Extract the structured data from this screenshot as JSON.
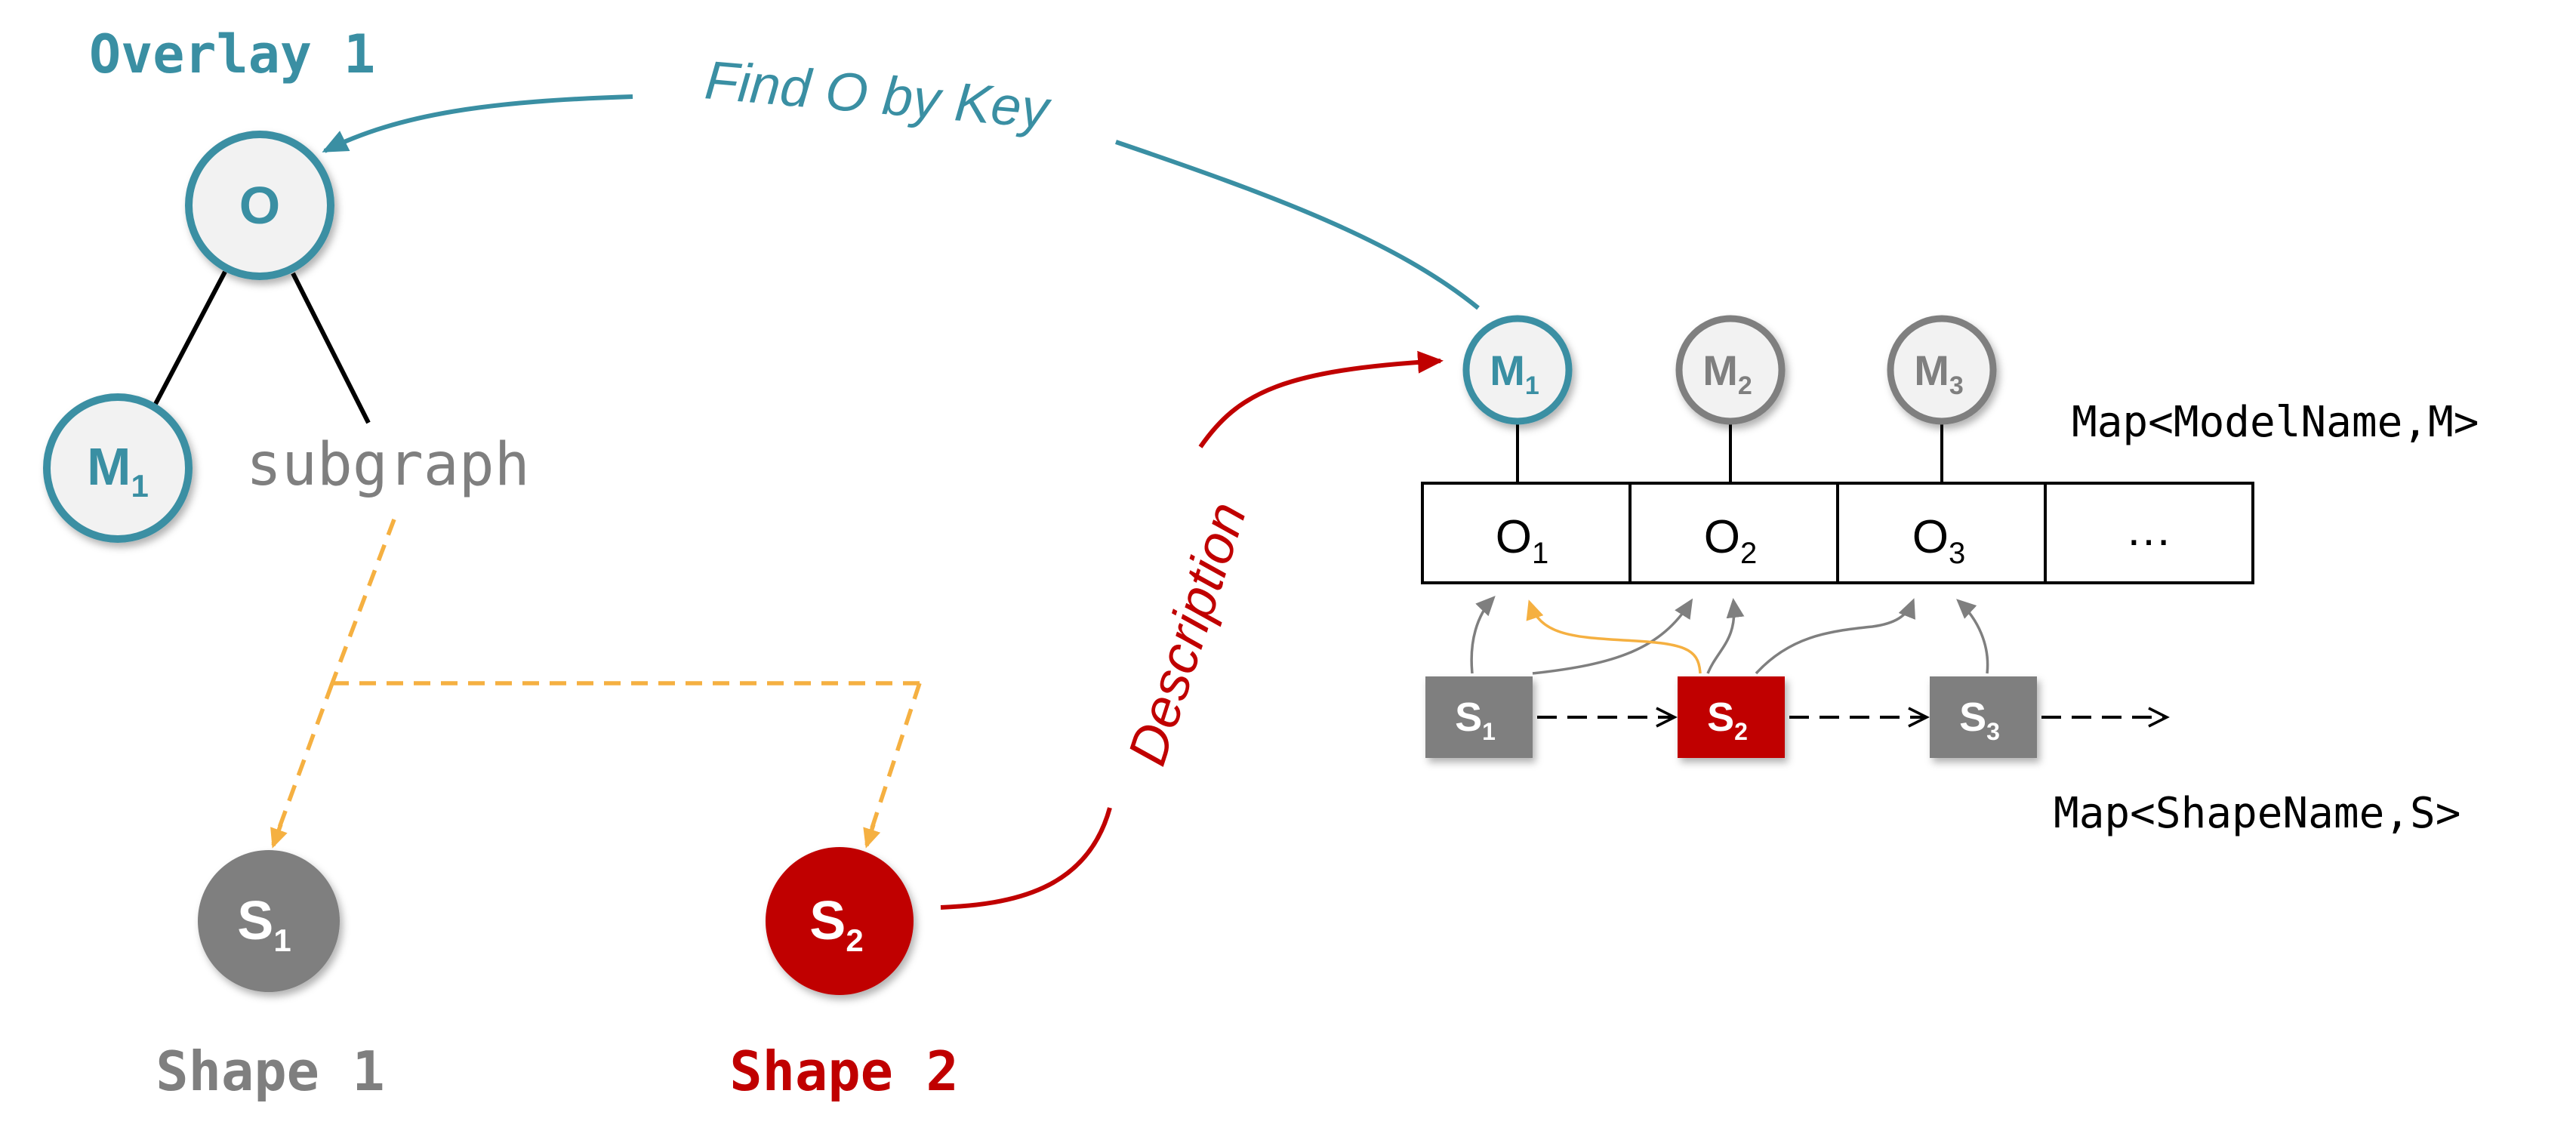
{
  "colors": {
    "teal": "#3a8fa3",
    "gray": "#7f7f7f",
    "red": "#c00000",
    "orange": "#f5b041",
    "node_fill": "#f2f2f2",
    "black": "#000000"
  },
  "overlay": {
    "title": "Overlay 1",
    "root_label": "O",
    "model": {
      "main": "M",
      "sub": "1"
    },
    "subgraph_label": "subgraph"
  },
  "shapes": [
    {
      "main": "S",
      "sub": "1",
      "caption": "Shape 1"
    },
    {
      "main": "S",
      "sub": "2",
      "caption": "Shape 2"
    }
  ],
  "edge_labels": {
    "find": "Find O by Key",
    "description": "Description"
  },
  "model_map": {
    "label": "Map<ModelName,M>",
    "models": [
      {
        "main": "M",
        "sub": "1"
      },
      {
        "main": "M",
        "sub": "2"
      },
      {
        "main": "M",
        "sub": "3"
      }
    ],
    "cells": [
      {
        "main": "O",
        "sub": "1"
      },
      {
        "main": "O",
        "sub": "2"
      },
      {
        "main": "O",
        "sub": "3"
      },
      {
        "main": "…",
        "sub": ""
      }
    ]
  },
  "shape_map": {
    "label": "Map<ShapeName,S>",
    "items": [
      {
        "main": "S",
        "sub": "1"
      },
      {
        "main": "S",
        "sub": "2"
      },
      {
        "main": "S",
        "sub": "3"
      }
    ]
  }
}
